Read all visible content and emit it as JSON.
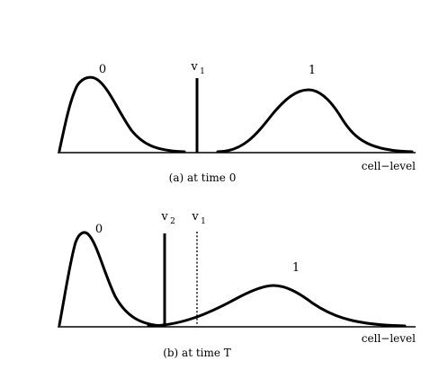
{
  "panel_a": {
    "caption": "(a) at time 0",
    "axis_label": "cell−level",
    "curve_0_label": "0",
    "curve_1_label": "1",
    "threshold_letter": "v",
    "threshold_sub": "1"
  },
  "panel_b": {
    "caption": "(b) at time T",
    "axis_label": "cell−level",
    "curve_0_label": "0",
    "curve_1_label": "1",
    "threshold_new_letter": "v",
    "threshold_new_sub": "2",
    "threshold_old_letter": "v",
    "threshold_old_sub": "1"
  }
}
